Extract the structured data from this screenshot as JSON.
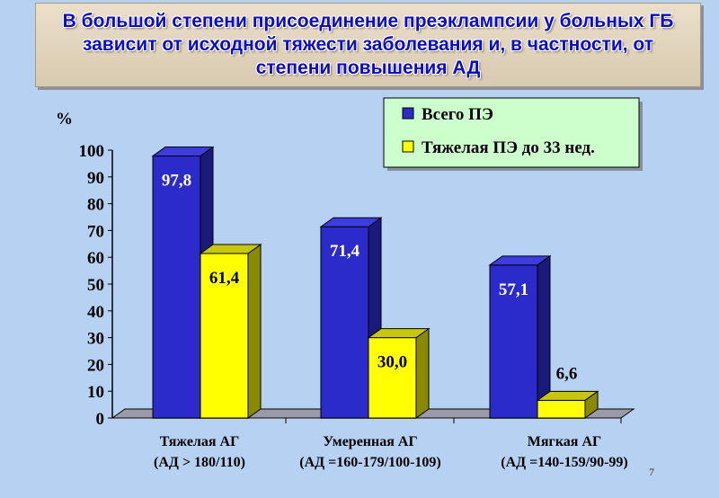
{
  "title": "В большой степени присоединение преэклампсии у больных ГБ зависит от исходной тяжести заболевания и, в частности, от степени повышения АД",
  "page_number": "7",
  "chart_data": {
    "type": "bar",
    "ylabel": "%",
    "ylim": [
      0,
      100
    ],
    "yticks": [
      "0",
      "10",
      "20",
      "30",
      "40",
      "50",
      "60",
      "70",
      "80",
      "90",
      "100"
    ],
    "categories": [
      {
        "line1": "Тяжелая АГ",
        "line2": "(АД > 180/110)"
      },
      {
        "line1": "Умеренная АГ",
        "line2": "(АД =160-179/100-109)"
      },
      {
        "line1": "Мягкая АГ",
        "line2": "(АД =140-159/90-99)"
      }
    ],
    "series": [
      {
        "name": "Всего ПЭ",
        "values": [
          97.8,
          71.4,
          57.1
        ],
        "labels": [
          "97,8",
          "71,4",
          "57,1"
        ],
        "color": "#2b2bcc",
        "side": "#1a1a7a",
        "top": "#3c3ce0"
      },
      {
        "name": "Тяжелая ПЭ до 33 нед.",
        "values": [
          61.4,
          30.0,
          6.6
        ],
        "labels": [
          "61,4",
          "30,0",
          "6,6"
        ],
        "color": "#ffff00",
        "side": "#8a8a00",
        "top": "#c8c800"
      }
    ],
    "legend_position": "top-right",
    "legend_bg": "#ccffcc"
  }
}
